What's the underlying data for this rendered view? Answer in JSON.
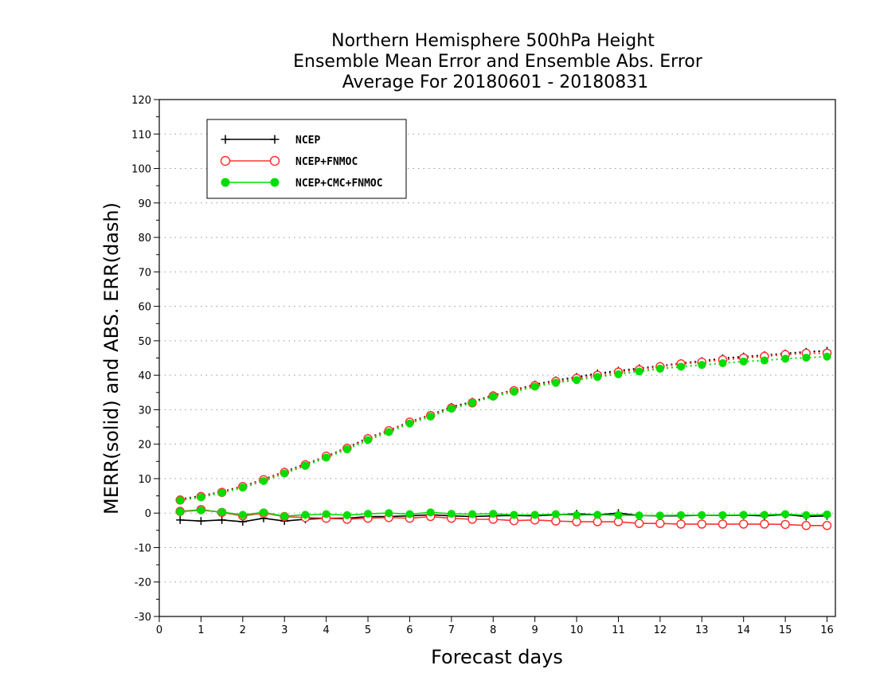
{
  "chart_data": {
    "type": "line",
    "title_lines": [
      "Northern Hemisphere 500hPa Height",
      "Ensemble Mean Error and Ensemble Abs. Error",
      "Average For 20180601 - 20180831"
    ],
    "xlabel": "Forecast days",
    "ylabel": "MERR(solid) and ABS. ERR(dash)",
    "xlim": [
      0,
      16.2
    ],
    "ylim": [
      -30,
      120
    ],
    "x_ticks": [
      "0",
      "1",
      "2",
      "3",
      "4",
      "5",
      "6",
      "7",
      "8",
      "9",
      "10",
      "11",
      "12",
      "13",
      "14",
      "15",
      "16"
    ],
    "y_ticks": [
      "120",
      "110",
      "100",
      "90",
      "80",
      "70",
      "60",
      "50",
      "40",
      "30",
      "20",
      "10",
      "0",
      "-10",
      "-20",
      "-30"
    ],
    "grid": "horizontal dotted",
    "legend_position": "top-left",
    "x": [
      0.5,
      1,
      1.5,
      2,
      2.5,
      3,
      3.5,
      4,
      4.5,
      5,
      5.5,
      6,
      6.5,
      7,
      7.5,
      8,
      8.5,
      9,
      9.5,
      10,
      10.5,
      11,
      11.5,
      12,
      12.5,
      13,
      13.5,
      14,
      14.5,
      15,
      15.5,
      16
    ],
    "series": [
      {
        "name": "NCEP",
        "color": "#000000",
        "marker": "plus",
        "merr": [
          -2,
          -2.3,
          -2,
          -2.5,
          -1.5,
          -2.3,
          -1.8,
          -1.5,
          -1.5,
          -1,
          -1,
          -0.8,
          -0.5,
          -0.8,
          -1,
          -0.8,
          -0.7,
          -0.8,
          -0.5,
          -0.2,
          -0.5,
          0,
          -0.7,
          -0.8,
          -0.8,
          -0.6,
          -0.7,
          -0.6,
          -0.8,
          -0.4,
          -1,
          -0.8
        ],
        "abs_err": [
          4,
          5,
          6.2,
          7.8,
          9.8,
          12,
          14.2,
          16.5,
          19,
          21.8,
          24,
          26.5,
          28.5,
          30.8,
          32.3,
          34.2,
          35.7,
          37.3,
          38.5,
          39.5,
          40.5,
          41.3,
          42,
          42.7,
          43.5,
          44.1,
          44.9,
          45.4,
          45.8,
          46.3,
          46.8,
          47.1
        ]
      },
      {
        "name": "NCEP+FNMOC",
        "color": "#ff3333",
        "marker": "open-circle",
        "merr": [
          0.5,
          1,
          0.2,
          -0.8,
          0,
          -1,
          -1.3,
          -1.5,
          -1.8,
          -1.5,
          -1.3,
          -1.5,
          -1,
          -1.5,
          -1.8,
          -1.8,
          -2.2,
          -2,
          -2.3,
          -2.5,
          -2.5,
          -2.5,
          -3,
          -3,
          -3.2,
          -3.2,
          -3.2,
          -3.2,
          -3.2,
          -3.3,
          -3.6,
          -3.6
        ],
        "abs_err": [
          3.8,
          4.8,
          6,
          7.7,
          9.7,
          11.8,
          14,
          16.5,
          18.8,
          21.6,
          23.9,
          26.4,
          28.3,
          30.5,
          32,
          34,
          35.5,
          37,
          38.2,
          39.1,
          40,
          40.9,
          41.6,
          42.5,
          43.3,
          43.8,
          44.5,
          45,
          45.5,
          46,
          46.4,
          46.4
        ]
      },
      {
        "name": "NCEP+CMC+FNMOC",
        "color": "#00dd00",
        "marker": "filled-circle",
        "merr": [
          0.4,
          0.8,
          0.3,
          -0.5,
          0.2,
          -0.9,
          -0.5,
          -0.3,
          -0.6,
          -0.2,
          0,
          -0.3,
          0.2,
          -0.2,
          -0.3,
          -0.2,
          -0.5,
          -0.5,
          -0.3,
          -0.6,
          -0.5,
          -0.6,
          -0.7,
          -0.7,
          -0.6,
          -0.6,
          -0.6,
          -0.5,
          -0.5,
          -0.3,
          -0.6,
          -0.4
        ],
        "abs_err": [
          3.7,
          4.6,
          5.9,
          7.4,
          9.3,
          11.5,
          13.7,
          16.1,
          18.5,
          21.2,
          23.5,
          26,
          28,
          30.3,
          32,
          33.8,
          35.2,
          36.7,
          37.8,
          38.6,
          39.5,
          40.3,
          41.1,
          41.9,
          42.5,
          43,
          43.5,
          44,
          44.3,
          44.8,
          45.1,
          45.4
        ]
      }
    ]
  }
}
